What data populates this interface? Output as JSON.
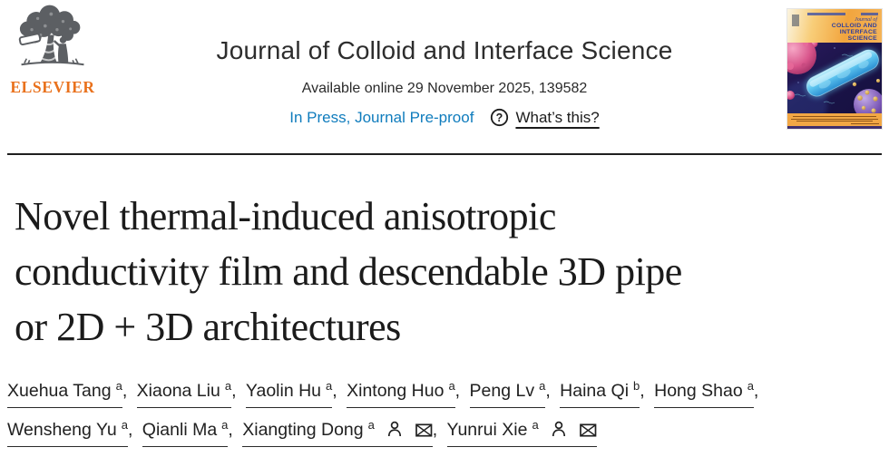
{
  "masthead": {
    "elsevier_wordmark": "ELSEVIER",
    "journal_title": "Journal of Colloid and Interface Science",
    "available_line": "Available online 29 November 2025, 139582",
    "in_press_label": "In Press, Journal Pre-proof",
    "whats_this_label": "What’s this?"
  },
  "cover": {
    "title_lines": [
      "Journal of",
      "COLLOID AND",
      "INTERFACE",
      "SCIENCE"
    ]
  },
  "article": {
    "title_lines": [
      "Novel thermal-induced anisotropic",
      "conductivity film and descendable 3D pipe",
      "or 2D + 3D architectures"
    ]
  },
  "authors": {
    "lines": [
      [
        {
          "name": "Xuehua Tang",
          "sup": "a"
        },
        {
          "name": "Xiaona Liu",
          "sup": "a"
        },
        {
          "name": "Yaolin Hu",
          "sup": "a"
        },
        {
          "name": "Xintong Huo",
          "sup": "a"
        },
        {
          "name": "Peng Lv",
          "sup": "a"
        },
        {
          "name": "Haina Qi",
          "sup": "b"
        },
        {
          "name": "Hong Shao",
          "sup": "a"
        }
      ],
      [
        {
          "name": "Wensheng Yu",
          "sup": "a"
        },
        {
          "name": "Qianli Ma",
          "sup": "a"
        },
        {
          "name": "Xiangting Dong",
          "sup": "a",
          "corresponding": true
        },
        {
          "name": "Yunrui Xie",
          "sup": "a",
          "corresponding": true
        }
      ]
    ]
  },
  "icons": {
    "help": "question-mark-circle",
    "corresponding_author": "person-outline",
    "email": "envelope"
  },
  "colors": {
    "link_blue": "#0f7cbd",
    "elsevier_orange": "#e9711c",
    "logo_gray": "#5c5f63",
    "text_dark": "#212121",
    "cover_band_orange": "#f2a53e",
    "cover_navy": "#1a1348"
  }
}
